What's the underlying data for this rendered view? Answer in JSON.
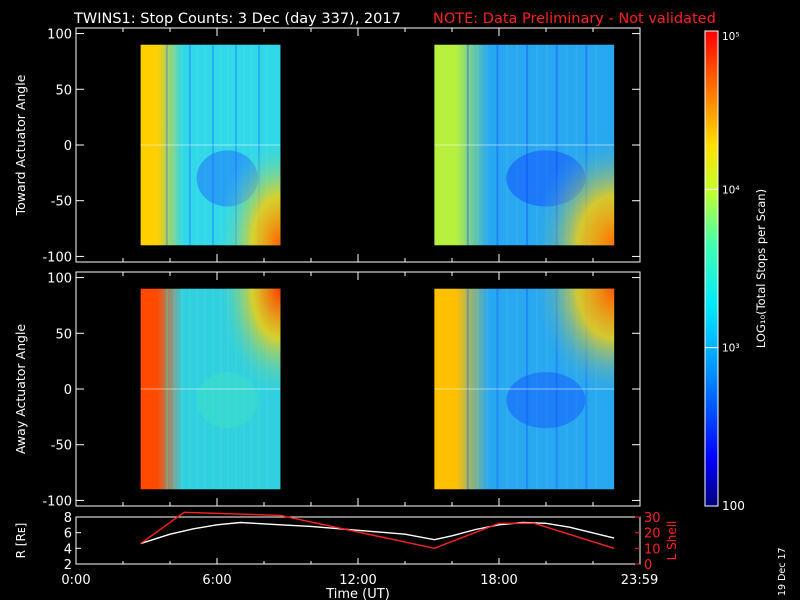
{
  "title": {
    "main": "TWINS1: Stop Counts:  3 Dec (day 337), 2017",
    "note": "NOTE: Data Preliminary - Not validated",
    "note_color": "#ff2020"
  },
  "stamp": "19 Dec 17",
  "chart_data": [
    {
      "type": "heatmap",
      "panel": "toward",
      "ylabel": "Toward Actuator Angle",
      "ylim": [
        -105,
        105
      ],
      "yticks": [
        "100",
        "50",
        "0",
        "-50",
        "-100"
      ],
      "ytick_values": [
        100,
        50,
        0,
        -50,
        -100
      ],
      "xlim_hours": [
        0,
        24
      ],
      "scans": [
        {
          "start_hours": 2.75,
          "end_hours": 8.7,
          "ymin": -90,
          "ymax": 90,
          "lead_color": "#ffcf00",
          "field_color": "#30d8e8",
          "dip_color": "#2060ff",
          "edge_color": "#ff6000",
          "edge_corner": "bottom-right"
        },
        {
          "start_hours": 15.25,
          "end_hours": 22.9,
          "ymin": -90,
          "ymax": 90,
          "lead_color": "#b8f040",
          "field_color": "#28a8f0",
          "dip_color": "#1040ff",
          "edge_color": "#ff7000",
          "edge_corner": "bottom-right"
        }
      ]
    },
    {
      "type": "heatmap",
      "panel": "away",
      "ylabel": "Away Actuator Angle",
      "ylim": [
        -105,
        105
      ],
      "yticks": [
        "100",
        "50",
        "0",
        "-50",
        "-100"
      ],
      "ytick_values": [
        100,
        50,
        0,
        -50,
        -100
      ],
      "xlim_hours": [
        0,
        24
      ],
      "scans": [
        {
          "start_hours": 2.75,
          "end_hours": 8.7,
          "ymin": -90,
          "ymax": 90,
          "lead_color": "#ff4a00",
          "field_color": "#30d0e0",
          "dip_color": "#40e0c0",
          "edge_color": "#ff3800",
          "edge_corner": "top-right"
        },
        {
          "start_hours": 15.25,
          "end_hours": 22.9,
          "ymin": -90,
          "ymax": 90,
          "lead_color": "#ffc000",
          "field_color": "#28a8f0",
          "dip_color": "#1050ff",
          "edge_color": "#ff5a00",
          "edge_corner": "top-right"
        }
      ]
    },
    {
      "type": "colorbar",
      "label": "LOG₁₀(Total Stops per Scan)",
      "scale": "log",
      "range": [
        100,
        100000
      ],
      "ticks": [
        "10⁵",
        "10⁴",
        "10³",
        "100"
      ],
      "tick_values": [
        100000,
        10000,
        1000,
        100
      ]
    },
    {
      "type": "line",
      "panel": "orbit",
      "xlabel": "Time (UT)",
      "x_ticks": [
        "0:00",
        "6:00",
        "12:00",
        "18:00",
        "23:59"
      ],
      "x_tick_hours": [
        0,
        6,
        12,
        18,
        23.98
      ],
      "left_axis": {
        "label": "R [Rᴇ]",
        "ylim": [
          2,
          8
        ],
        "ticks": [
          "8",
          "6",
          "4",
          "2"
        ],
        "tick_values": [
          8,
          6,
          4,
          2
        ],
        "color": "#ffffff"
      },
      "right_axis": {
        "label": "L Shell",
        "ylim": [
          0,
          30
        ],
        "ticks": [
          "30",
          "20",
          "10",
          "0"
        ],
        "tick_values": [
          30,
          20,
          10,
          0
        ],
        "color": "#ff2020"
      },
      "series": [
        {
          "axis": "left",
          "color": "#ffffff",
          "x": [
            2.75,
            4,
            5,
            6,
            7,
            8.7,
            10,
            12,
            14,
            15.25,
            16,
            17,
            18,
            19,
            20,
            21,
            22.9
          ],
          "y": [
            4.6,
            5.8,
            6.5,
            7.0,
            7.3,
            7.0,
            6.8,
            6.3,
            5.8,
            5.1,
            5.6,
            6.4,
            7.0,
            7.3,
            7.2,
            6.7,
            5.3
          ]
        },
        {
          "axis": "right",
          "color": "#ff2020",
          "x": [
            2.75,
            4.6,
            8.7,
            15.25,
            18,
            19.5,
            22.9
          ],
          "y": [
            13,
            33,
            31,
            10,
            26,
            26,
            10
          ]
        }
      ]
    }
  ]
}
